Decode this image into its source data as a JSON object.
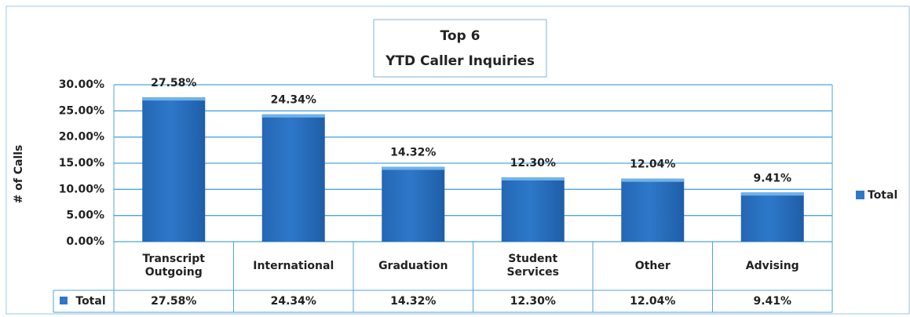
{
  "chart_data": {
    "type": "bar",
    "title": "Top 6",
    "subtitle": "YTD Caller Inquiries",
    "y_label": "# of Calls",
    "categories": [
      "Transcript Outgoing",
      "International",
      "Graduation",
      "Student Services",
      "Other",
      "Advising"
    ],
    "series": [
      {
        "name": "Total",
        "color": "#2e78c9",
        "values": [
          27.58,
          24.34,
          14.32,
          12.3,
          12.04,
          9.41
        ],
        "value_labels": [
          "27.58%",
          "24.34%",
          "14.32%",
          "12.30%",
          "12.04%",
          "9.41%"
        ]
      }
    ],
    "ylim": [
      0,
      30
    ],
    "yticks": [
      {
        "value": 0,
        "label": "0.00%"
      },
      {
        "value": 5,
        "label": "5.00%"
      },
      {
        "value": 10,
        "label": "10.00%"
      },
      {
        "value": 15,
        "label": "15.00%"
      },
      {
        "value": 20,
        "label": "20.00%"
      },
      {
        "value": 25,
        "label": "25.00%"
      },
      {
        "value": 30,
        "label": "30.00%"
      }
    ],
    "grid": true,
    "legend": "right",
    "data_table": true
  }
}
